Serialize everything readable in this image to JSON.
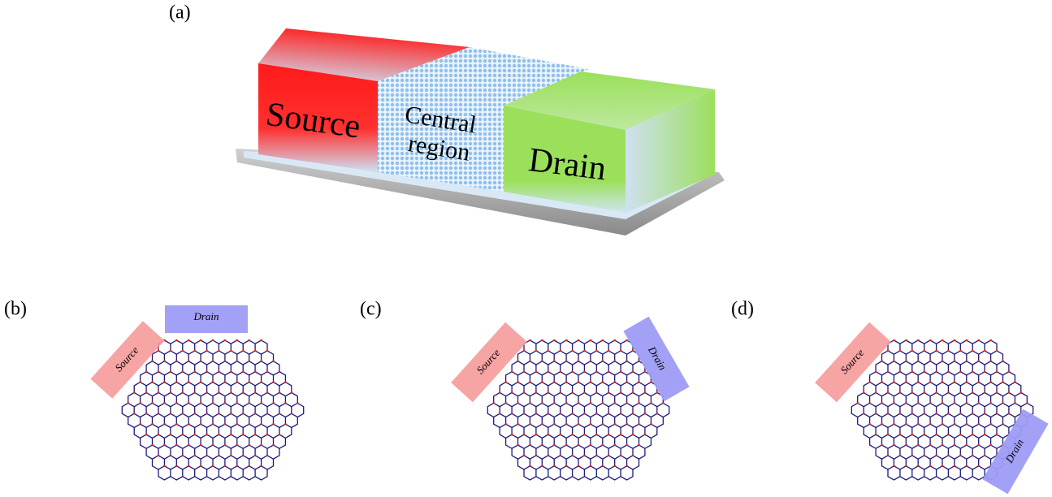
{
  "panels": [
    {
      "label": "(a)",
      "source": "Source",
      "central": [
        "Central",
        "region"
      ],
      "drain": "Drain"
    },
    {
      "label": "(b)",
      "source": "Source",
      "drain": "Drain"
    },
    {
      "label": "(c)",
      "source": "Source",
      "drain": "Drain"
    },
    {
      "label": "(d)",
      "source": "Source",
      "drain": "Drain"
    }
  ]
}
